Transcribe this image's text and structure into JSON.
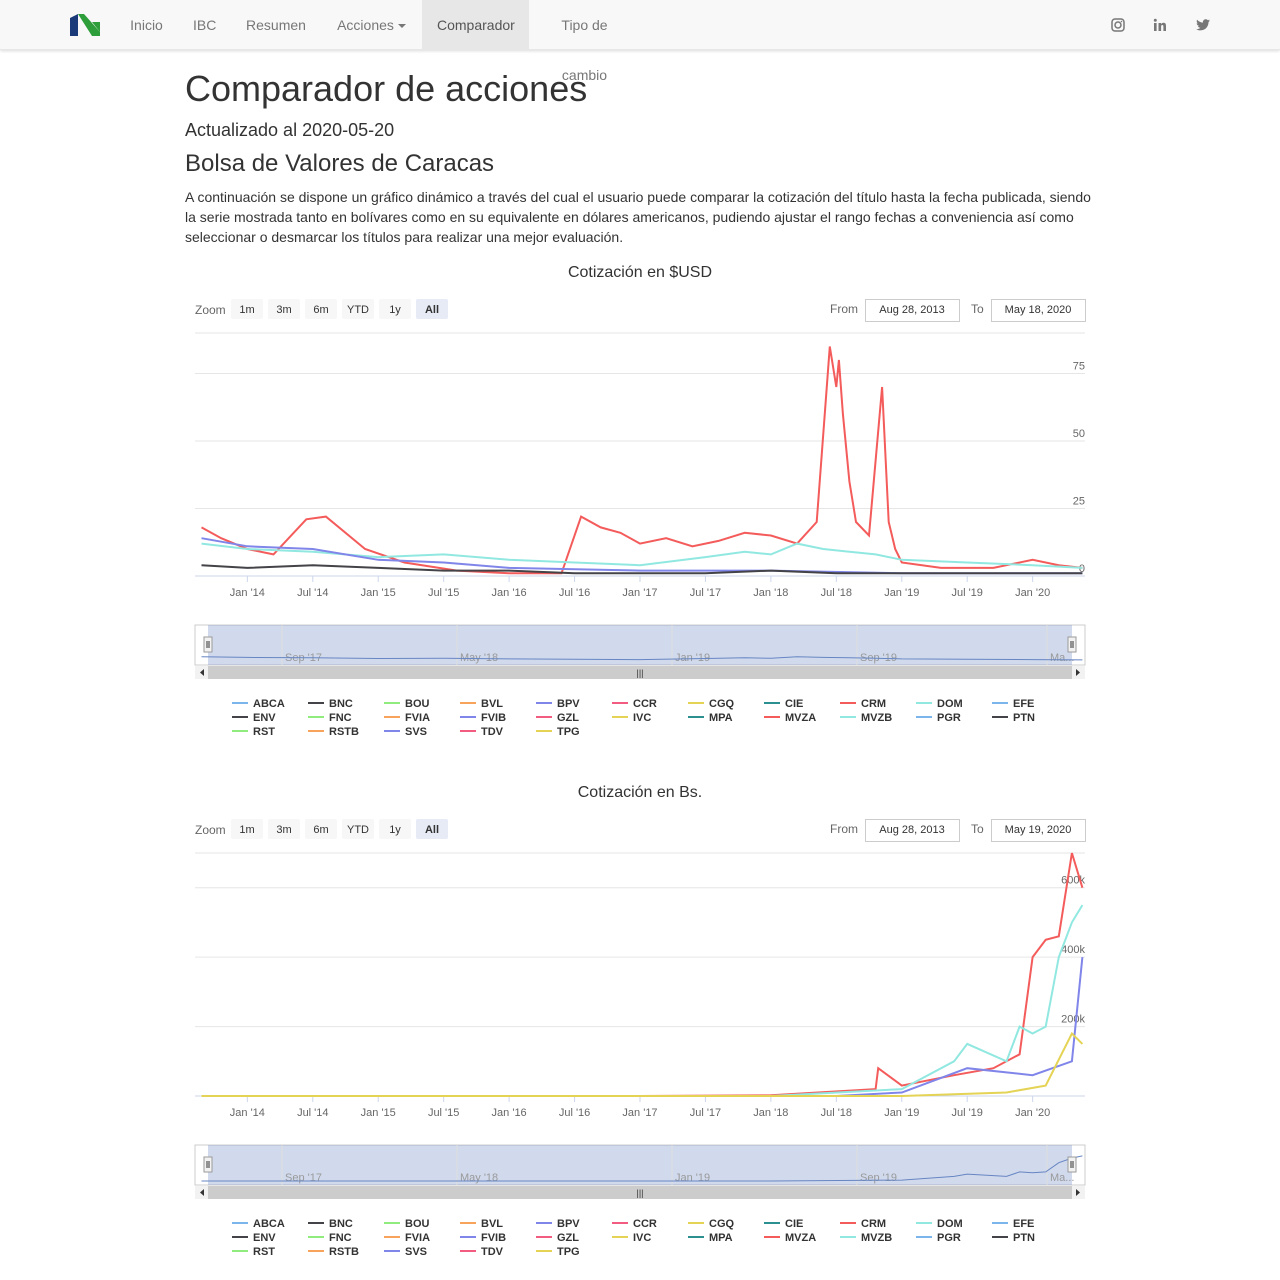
{
  "nav": {
    "items": [
      {
        "label": "Inicio",
        "name": "nav-inicio",
        "active": false
      },
      {
        "label": "IBC",
        "name": "nav-ibc",
        "active": false
      },
      {
        "label": "Resumen",
        "name": "nav-resumen",
        "active": false
      },
      {
        "label": "Acciones",
        "name": "nav-acciones",
        "active": false,
        "dropdown": true
      },
      {
        "label": "Comparador",
        "name": "nav-comparador",
        "active": true
      },
      {
        "label": "Tipo de cambio",
        "name": "nav-tipo-de-cambio",
        "active": false
      }
    ],
    "social_icons": [
      "instagram-icon",
      "linkedin-icon",
      "twitter-icon"
    ]
  },
  "page": {
    "title": "Comparador de acciones",
    "updated": "Actualizado al 2020-05-20",
    "subtitle": "Bolsa de Valores de Caracas",
    "description": "A continuación se dispone un gráfico dinámico a través del cual el usuario puede comparar la cotización del título hasta la fecha publicada, siendo la serie mostrada tanto en bolívares como en su equivalente en dólares americanos, pudiendo ajustar el rango fechas a conveniencia así como seleccionar o desmarcar los títulos para realizar una mejor evaluación."
  },
  "controls": {
    "zoom_label": "Zoom",
    "zoom_buttons": [
      "1m",
      "3m",
      "6m",
      "YTD",
      "1y",
      "All"
    ],
    "zoom_selected": "All",
    "from_label": "From",
    "to_label": "To"
  },
  "series_colors": {
    "ABCA": "#7cb5ec",
    "BNC": "#434348",
    "BOU": "#90ed7d",
    "BVL": "#f7a35c",
    "BPV": "#8085e9",
    "CCR": "#f15c80",
    "CGQ": "#e4d354",
    "CIE": "#2b908f",
    "CRM": "#f45b5b",
    "DOM": "#91e8e1",
    "EFE": "#7cb5ec",
    "ENV": "#434348",
    "FNC": "#90ed7d",
    "FVIA": "#f7a35c",
    "FVIB": "#8085e9",
    "GZL": "#f15c80",
    "IVC": "#e4d354",
    "MPA": "#2b908f",
    "MVZA": "#f45b5b",
    "MVZB": "#91e8e1",
    "PGR": "#7cb5ec",
    "PTN": "#434348",
    "RST": "#90ed7d",
    "RSTB": "#f7a35c",
    "SVS": "#8085e9",
    "TDV": "#f15c80",
    "TPG": "#e4d354"
  },
  "chart_data": [
    {
      "type": "line",
      "title": "Cotización en $USD",
      "from": "Aug 28, 2013",
      "to": "May 18, 2020",
      "x_ticks": [
        "Jan '14",
        "Jul '14",
        "Jan '15",
        "Jul '15",
        "Jan '16",
        "Jul '16",
        "Jan '17",
        "Jul '17",
        "Jan '18",
        "Jul '18",
        "Jan '19",
        "Jul '19",
        "Jan '20"
      ],
      "y_ticks": [
        "0",
        "25",
        "50",
        "75"
      ],
      "ylim": [
        0,
        90
      ],
      "navigator_labels": [
        "Sep '17",
        "May '18",
        "Jan '19",
        "Sep '19",
        "Ma..."
      ],
      "legend": [
        "ABCA",
        "BNC",
        "BOU",
        "BVL",
        "BPV",
        "CCR",
        "CGQ",
        "CIE",
        "CRM",
        "DOM",
        "EFE",
        "ENV",
        "FNC",
        "FVIA",
        "FVIB",
        "GZL",
        "IVC",
        "MPA",
        "MVZA",
        "MVZB",
        "PGR",
        "PTN",
        "RST",
        "RSTB",
        "SVS",
        "TDV",
        "TPG"
      ],
      "series": [
        {
          "name": "CRM",
          "x": [
            2013.65,
            2013.8,
            2014.0,
            2014.2,
            2014.45,
            2014.6,
            2014.9,
            2015.2,
            2015.6,
            2016.0,
            2016.4,
            2016.55,
            2016.7,
            2016.85,
            2017.0,
            2017.2,
            2017.4,
            2017.6,
            2017.8,
            2018.0,
            2018.2,
            2018.35,
            2018.45,
            2018.5,
            2018.52,
            2018.55,
            2018.6,
            2018.65,
            2018.75,
            2018.85,
            2018.9,
            2018.95,
            2019.0,
            2019.3,
            2019.7,
            2020.0,
            2020.2,
            2020.38
          ],
          "values": [
            18,
            14,
            10,
            8,
            21,
            22,
            10,
            5,
            2,
            1,
            1,
            22,
            18,
            16,
            12,
            14,
            11,
            13,
            16,
            15,
            12,
            20,
            85,
            70,
            80,
            60,
            35,
            20,
            15,
            70,
            20,
            10,
            5,
            3,
            3,
            6,
            4,
            3
          ]
        },
        {
          "name": "DOM",
          "x": [
            2013.65,
            2014.0,
            2014.5,
            2015.0,
            2015.5,
            2016.0,
            2016.5,
            2017.0,
            2017.5,
            2017.8,
            2018.0,
            2018.2,
            2018.4,
            2018.6,
            2018.8,
            2019.0,
            2019.5,
            2020.0,
            2020.38
          ],
          "values": [
            12,
            10,
            9,
            7,
            8,
            6,
            5,
            4,
            7,
            9,
            8,
            12,
            10,
            9,
            8,
            6,
            5,
            4,
            3
          ]
        },
        {
          "name": "BPV",
          "x": [
            2013.65,
            2014.0,
            2014.5,
            2015.0,
            2015.5,
            2016.0,
            2017.0,
            2018.0,
            2019.0,
            2020.38
          ],
          "values": [
            14,
            11,
            10,
            6,
            5,
            3,
            2,
            2,
            1,
            1
          ]
        },
        {
          "name": "BNC",
          "x": [
            2013.65,
            2014.0,
            2014.5,
            2015.0,
            2015.5,
            2016.0,
            2016.5,
            2017.0,
            2017.5,
            2018.0,
            2018.5,
            2019.0,
            2020.38
          ],
          "values": [
            4,
            3,
            4,
            3,
            2,
            2,
            1,
            1,
            1,
            2,
            1,
            1,
            1
          ]
        }
      ]
    },
    {
      "type": "line",
      "title": "Cotización en Bs.",
      "from": "Aug 28, 2013",
      "to": "May 19, 2020",
      "x_ticks": [
        "Jan '14",
        "Jul '14",
        "Jan '15",
        "Jul '15",
        "Jan '16",
        "Jul '16",
        "Jan '17",
        "Jul '17",
        "Jan '18",
        "Jul '18",
        "Jan '19",
        "Jul '19",
        "Jan '20"
      ],
      "y_ticks": [
        "200k",
        "400k",
        "600k"
      ],
      "ylim": [
        0,
        700000
      ],
      "navigator_labels": [
        "Sep '17",
        "May '18",
        "Jan '19",
        "Sep '19",
        "Ma..."
      ],
      "legend": [
        "ABCA",
        "BNC",
        "BOU",
        "BVL",
        "BPV",
        "CCR",
        "CGQ",
        "CIE",
        "CRM",
        "DOM",
        "EFE",
        "ENV",
        "FNC",
        "FVIA",
        "FVIB",
        "GZL",
        "IVC",
        "MPA",
        "MVZA",
        "MVZB",
        "PGR",
        "PTN",
        "RST",
        "RSTB",
        "SVS",
        "TDV",
        "TPG"
      ],
      "series": [
        {
          "name": "CRM",
          "x": [
            2013.65,
            2017.0,
            2018.0,
            2018.8,
            2018.82,
            2019.0,
            2019.4,
            2019.7,
            2019.9,
            2020.0,
            2020.1,
            2020.2,
            2020.3,
            2020.38
          ],
          "values": [
            0,
            0,
            2000,
            20000,
            80000,
            30000,
            60000,
            80000,
            120000,
            400000,
            450000,
            460000,
            700000,
            600000
          ]
        },
        {
          "name": "DOM",
          "x": [
            2013.65,
            2018.0,
            2019.0,
            2019.4,
            2019.5,
            2019.8,
            2019.9,
            2020.0,
            2020.1,
            2020.2,
            2020.3,
            2020.38
          ],
          "values": [
            0,
            0,
            20000,
            100000,
            150000,
            100000,
            200000,
            180000,
            200000,
            400000,
            500000,
            550000
          ]
        },
        {
          "name": "BPV",
          "x": [
            2013.65,
            2018.5,
            2019.0,
            2019.5,
            2020.0,
            2020.3,
            2020.38
          ],
          "values": [
            0,
            0,
            10000,
            80000,
            60000,
            100000,
            400000
          ]
        },
        {
          "name": "CGQ",
          "x": [
            2013.65,
            2019.0,
            2019.8,
            2020.1,
            2020.3,
            2020.38
          ],
          "values": [
            0,
            0,
            10000,
            30000,
            180000,
            150000
          ]
        }
      ]
    }
  ]
}
